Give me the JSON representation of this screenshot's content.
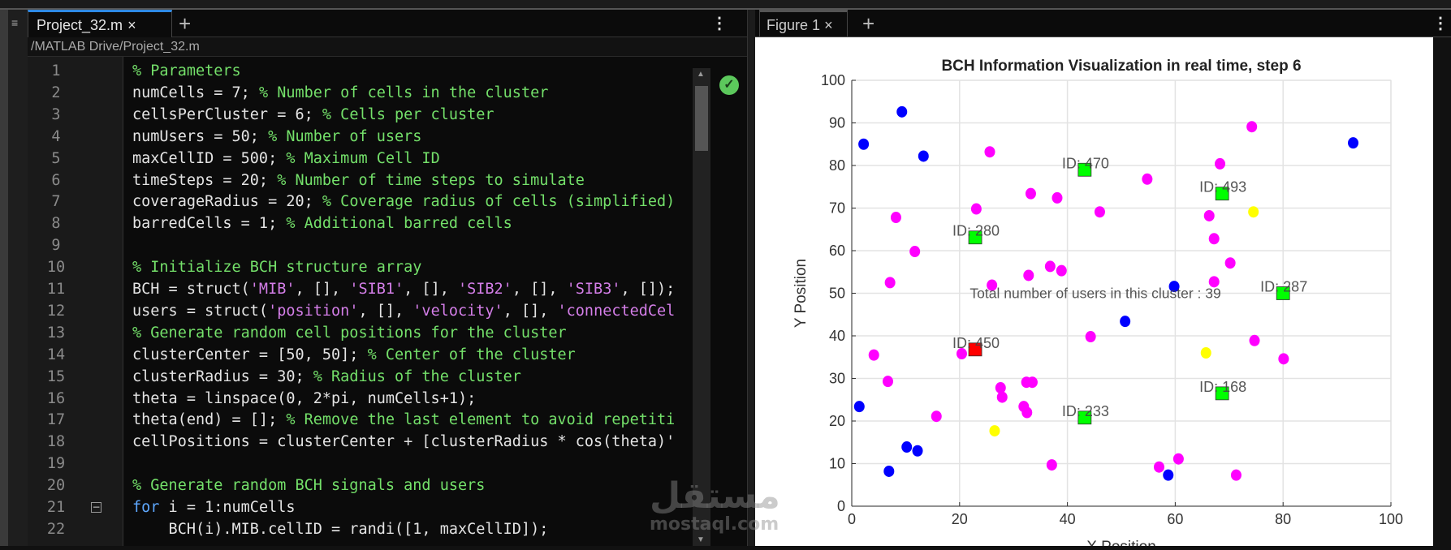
{
  "editor": {
    "tab_label": "Project_32.m",
    "tab_close": "×",
    "new_tab": "+",
    "menu": "⋮",
    "grip": "≡",
    "path": "/MATLAB Drive/Project_32.m",
    "status_icon": "check-circle-icon",
    "lines": [
      {
        "n": "1",
        "seg": [
          [
            "% Parameters",
            "cm"
          ]
        ]
      },
      {
        "n": "2",
        "seg": [
          [
            "numCells = 7; ",
            ""
          ],
          [
            "% Number of cells in the cluster",
            "cm"
          ]
        ]
      },
      {
        "n": "3",
        "seg": [
          [
            "cellsPerCluster = 6; ",
            ""
          ],
          [
            "% Cells per cluster",
            "cm"
          ]
        ]
      },
      {
        "n": "4",
        "seg": [
          [
            "numUsers = 50; ",
            ""
          ],
          [
            "% Number of users",
            "cm"
          ]
        ]
      },
      {
        "n": "5",
        "seg": [
          [
            "maxCellID = 500; ",
            ""
          ],
          [
            "% Maximum Cell ID",
            "cm"
          ]
        ]
      },
      {
        "n": "6",
        "seg": [
          [
            "timeSteps = 20; ",
            ""
          ],
          [
            "% Number of time steps to simulate",
            "cm"
          ]
        ]
      },
      {
        "n": "7",
        "seg": [
          [
            "coverageRadius = 20; ",
            ""
          ],
          [
            "% Coverage radius of cells (simplified)",
            "cm"
          ]
        ]
      },
      {
        "n": "8",
        "seg": [
          [
            "barredCells = 1; ",
            ""
          ],
          [
            "% Additional barred cells",
            "cm"
          ]
        ]
      },
      {
        "n": "9",
        "seg": []
      },
      {
        "n": "10",
        "seg": [
          [
            "% Initialize BCH structure array",
            "cm"
          ]
        ]
      },
      {
        "n": "11",
        "seg": [
          [
            "BCH = struct(",
            ""
          ],
          [
            "'MIB'",
            "st"
          ],
          [
            ", [], ",
            ""
          ],
          [
            "'SIB1'",
            "st"
          ],
          [
            ", [], ",
            ""
          ],
          [
            "'SIB2'",
            "st"
          ],
          [
            ", [], ",
            ""
          ],
          [
            "'SIB3'",
            "st"
          ],
          [
            ", []);",
            ""
          ]
        ]
      },
      {
        "n": "12",
        "seg": [
          [
            "users = struct(",
            ""
          ],
          [
            "'position'",
            "st"
          ],
          [
            ", [], ",
            ""
          ],
          [
            "'velocity'",
            "st"
          ],
          [
            ", [], ",
            ""
          ],
          [
            "'connectedCel",
            "st"
          ]
        ]
      },
      {
        "n": "13",
        "seg": [
          [
            "% Generate random cell positions for the cluster",
            "cm"
          ]
        ]
      },
      {
        "n": "14",
        "seg": [
          [
            "clusterCenter = [50, 50]; ",
            ""
          ],
          [
            "% Center of the cluster",
            "cm"
          ]
        ]
      },
      {
        "n": "15",
        "seg": [
          [
            "clusterRadius = 30; ",
            ""
          ],
          [
            "% Radius of the cluster",
            "cm"
          ]
        ]
      },
      {
        "n": "16",
        "seg": [
          [
            "theta = linspace(0, 2*pi, numCells+1);",
            ""
          ]
        ]
      },
      {
        "n": "17",
        "seg": [
          [
            "theta(end) = []; ",
            ""
          ],
          [
            "% Remove the last element to avoid repetiti",
            "cm"
          ]
        ]
      },
      {
        "n": "18",
        "seg": [
          [
            "cellPositions = clusterCenter + [clusterRadius * cos(theta)'",
            ""
          ]
        ]
      },
      {
        "n": "19",
        "seg": []
      },
      {
        "n": "20",
        "seg": [
          [
            "% Generate random BCH signals and users",
            "cm"
          ]
        ]
      },
      {
        "n": "21",
        "seg": [
          [
            "for",
            "kw"
          ],
          [
            " i = 1:numCells",
            ""
          ]
        ],
        "fold": "−"
      },
      {
        "n": "22",
        "seg": [
          [
            "    BCH(i).MIB.cellID = randi([1, maxCellID]);",
            ""
          ]
        ]
      }
    ]
  },
  "figure": {
    "tab_label": "Figure 1",
    "tab_close": "×",
    "new_tab": "+",
    "menu": "⋮"
  },
  "watermark": {
    "arabic": "مستقل",
    "latin": "mostaql.com"
  },
  "chart_data": {
    "type": "scatter",
    "title": "BCH Information Visualization in real time, step 6",
    "xlabel": "X Position",
    "ylabel": "Y Position",
    "xlim": [
      0,
      100
    ],
    "ylim": [
      0,
      100
    ],
    "xticks": [
      0,
      20,
      40,
      60,
      80,
      100
    ],
    "yticks": [
      0,
      10,
      20,
      30,
      40,
      50,
      60,
      70,
      80,
      90,
      100
    ],
    "grid": true,
    "series": [
      {
        "color": "#0000ff",
        "marker": "circle",
        "points": [
          [
            2.2,
            85.0
          ],
          [
            9.3,
            92.6
          ],
          [
            13.3,
            82.2
          ],
          [
            1.4,
            23.4
          ],
          [
            10.2,
            13.9
          ],
          [
            12.2,
            13.0
          ],
          [
            6.9,
            8.2
          ],
          [
            50.7,
            43.4
          ],
          [
            59.8,
            51.6
          ],
          [
            58.7,
            7.3
          ],
          [
            93.0,
            85.3
          ]
        ]
      },
      {
        "color": "#ff00ff",
        "marker": "circle",
        "points": [
          [
            25.6,
            83.2
          ],
          [
            33.2,
            73.4
          ],
          [
            38.1,
            72.4
          ],
          [
            54.8,
            76.8
          ],
          [
            46.0,
            69.1
          ],
          [
            23.1,
            69.8
          ],
          [
            8.2,
            67.8
          ],
          [
            11.7,
            59.8
          ],
          [
            68.3,
            80.4
          ],
          [
            66.3,
            68.2
          ],
          [
            67.2,
            62.8
          ],
          [
            74.2,
            89.1
          ],
          [
            7.1,
            52.5
          ],
          [
            26.0,
            51.9
          ],
          [
            32.8,
            54.2
          ],
          [
            36.8,
            56.3
          ],
          [
            38.9,
            55.3
          ],
          [
            67.2,
            52.7
          ],
          [
            70.2,
            57.1
          ],
          [
            44.3,
            39.8
          ],
          [
            20.4,
            35.8
          ],
          [
            4.1,
            35.5
          ],
          [
            6.7,
            29.3
          ],
          [
            32.4,
            29.1
          ],
          [
            33.5,
            29.1
          ],
          [
            27.6,
            27.8
          ],
          [
            27.9,
            25.6
          ],
          [
            31.9,
            23.4
          ],
          [
            32.5,
            22.0
          ],
          [
            15.7,
            21.1
          ],
          [
            37.1,
            9.7
          ],
          [
            57.0,
            9.2
          ],
          [
            60.6,
            11.1
          ],
          [
            74.7,
            38.9
          ],
          [
            80.1,
            34.6
          ],
          [
            71.3,
            7.3
          ]
        ]
      },
      {
        "color": "#ffff00",
        "marker": "circle",
        "points": [
          [
            26.5,
            17.7
          ],
          [
            65.7,
            36.0
          ],
          [
            74.5,
            69.1
          ]
        ]
      }
    ],
    "cells": [
      {
        "label": "ID: 470",
        "x": 43.2,
        "y": 79.0,
        "color": "#00ff00"
      },
      {
        "label": "ID: 493",
        "x": 68.7,
        "y": 73.4,
        "color": "#00ff00"
      },
      {
        "label": "ID: 280",
        "x": 22.9,
        "y": 63.1,
        "color": "#00ff00"
      },
      {
        "label": "ID: 287",
        "x": 80.0,
        "y": 50.0,
        "color": "#00ff00"
      },
      {
        "label": "ID: 450",
        "x": 22.9,
        "y": 36.8,
        "color": "#ff0000"
      },
      {
        "label": "ID: 168",
        "x": 68.7,
        "y": 26.5,
        "color": "#00ff00"
      },
      {
        "label": "ID: 233",
        "x": 43.2,
        "y": 20.8,
        "color": "#00ff00"
      }
    ],
    "annotation": {
      "text": "Total number of users in this cluster : 39",
      "x": 21.9,
      "y": 50
    }
  }
}
